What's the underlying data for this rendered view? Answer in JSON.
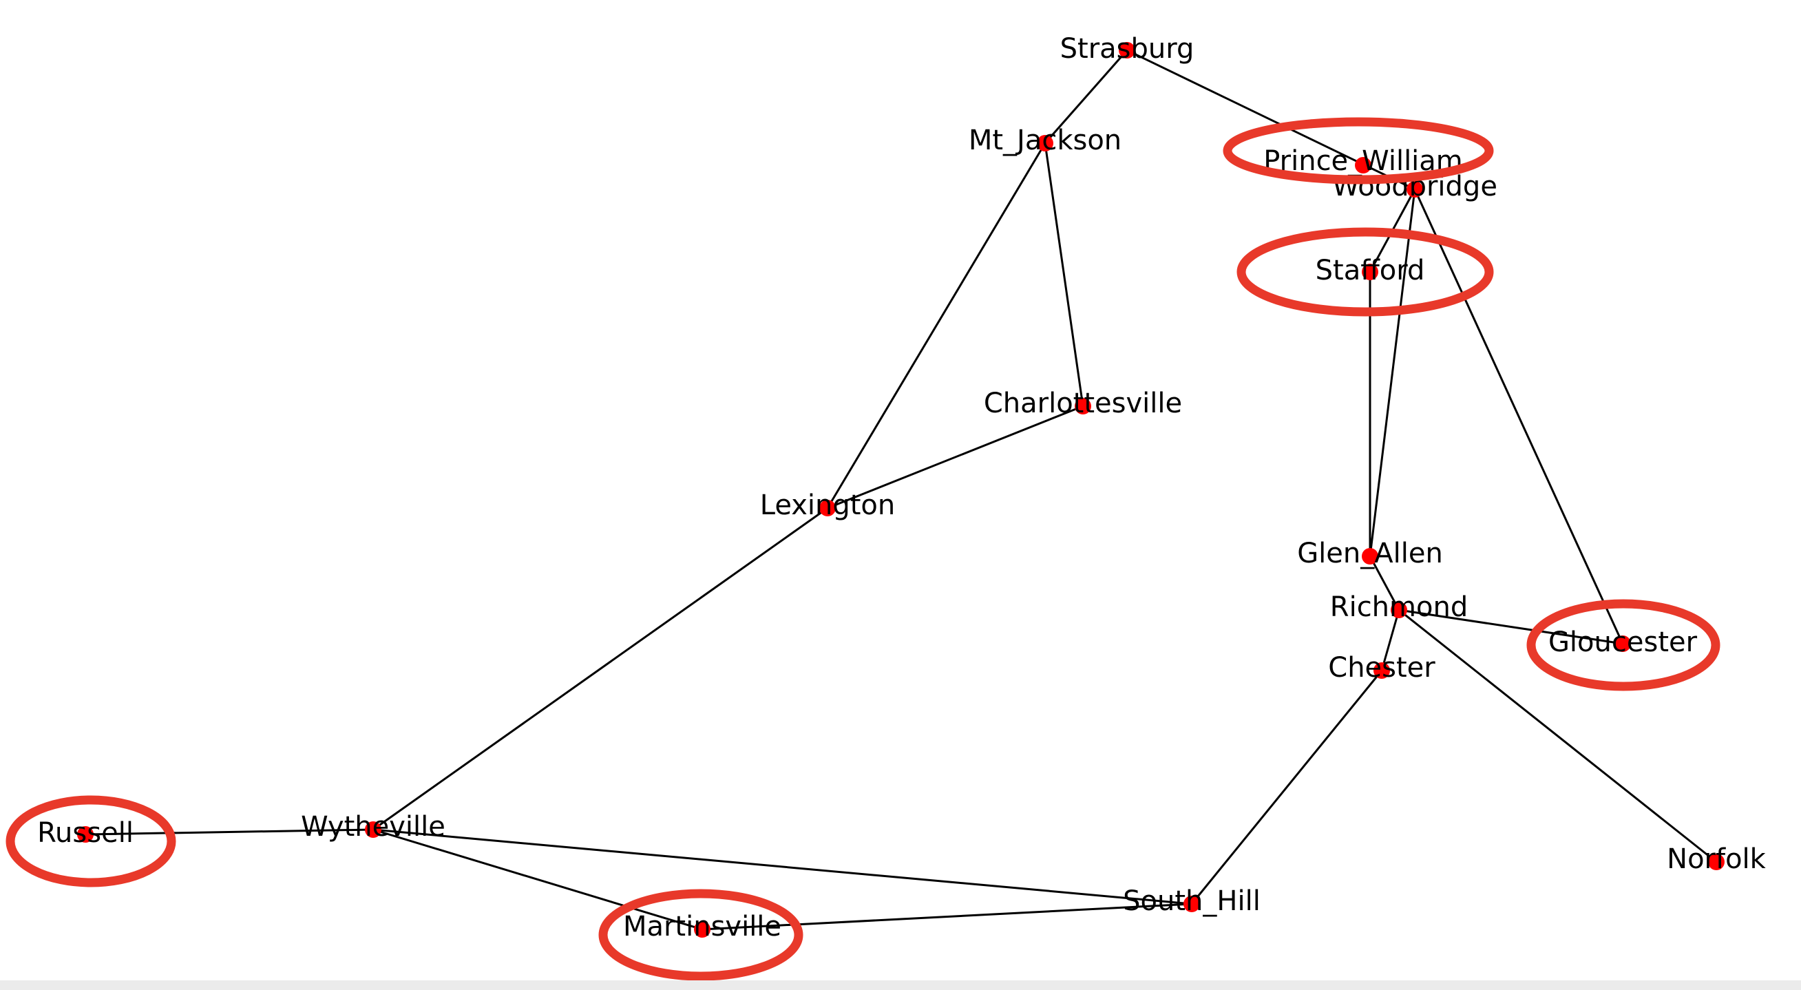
{
  "graph": {
    "colors": {
      "node": "#ff0000",
      "edge": "#000000",
      "highlight": "#e8392a",
      "background": "#ffffff"
    },
    "nodes": [
      {
        "id": "Strasburg",
        "label": "Strasburg"
      },
      {
        "id": "Mt_Jackson",
        "label": "Mt_Jackson"
      },
      {
        "id": "Prince_William",
        "label": "Prince_William"
      },
      {
        "id": "Woodbridge",
        "label": "Woodbridge"
      },
      {
        "id": "Stafford",
        "label": "Stafford"
      },
      {
        "id": "Charlottesville",
        "label": "Charlottesville"
      },
      {
        "id": "Lexington",
        "label": "Lexington"
      },
      {
        "id": "Glen_Allen",
        "label": "Glen_Allen"
      },
      {
        "id": "Richmond",
        "label": "Richmond"
      },
      {
        "id": "Gloucester",
        "label": "Gloucester"
      },
      {
        "id": "Chester",
        "label": "Chester"
      },
      {
        "id": "Russell",
        "label": "Russell"
      },
      {
        "id": "Wytheville",
        "label": "Wytheville"
      },
      {
        "id": "Norfolk",
        "label": "Norfolk"
      },
      {
        "id": "South_Hill",
        "label": "South_Hill"
      },
      {
        "id": "Martinsville",
        "label": "Martinsville"
      }
    ],
    "edges": [
      [
        "Strasburg",
        "Mt_Jackson"
      ],
      [
        "Strasburg",
        "Woodbridge"
      ],
      [
        "Mt_Jackson",
        "Lexington"
      ],
      [
        "Mt_Jackson",
        "Charlottesville"
      ],
      [
        "Charlottesville",
        "Lexington"
      ],
      [
        "Lexington",
        "Wytheville"
      ],
      [
        "Woodbridge",
        "Stafford"
      ],
      [
        "Woodbridge",
        "Glen_Allen"
      ],
      [
        "Woodbridge",
        "Gloucester"
      ],
      [
        "Stafford",
        "Glen_Allen"
      ],
      [
        "Glen_Allen",
        "Richmond"
      ],
      [
        "Richmond",
        "Gloucester"
      ],
      [
        "Richmond",
        "Chester"
      ],
      [
        "Richmond",
        "Norfolk"
      ],
      [
        "Chester",
        "South_Hill"
      ],
      [
        "Russell",
        "Wytheville"
      ],
      [
        "Wytheville",
        "South_Hill"
      ],
      [
        "Wytheville",
        "Martinsville"
      ],
      [
        "Martinsville",
        "South_Hill"
      ]
    ],
    "highlighted": [
      "Prince_William",
      "Stafford",
      "Gloucester",
      "Russell",
      "Martinsville"
    ]
  }
}
